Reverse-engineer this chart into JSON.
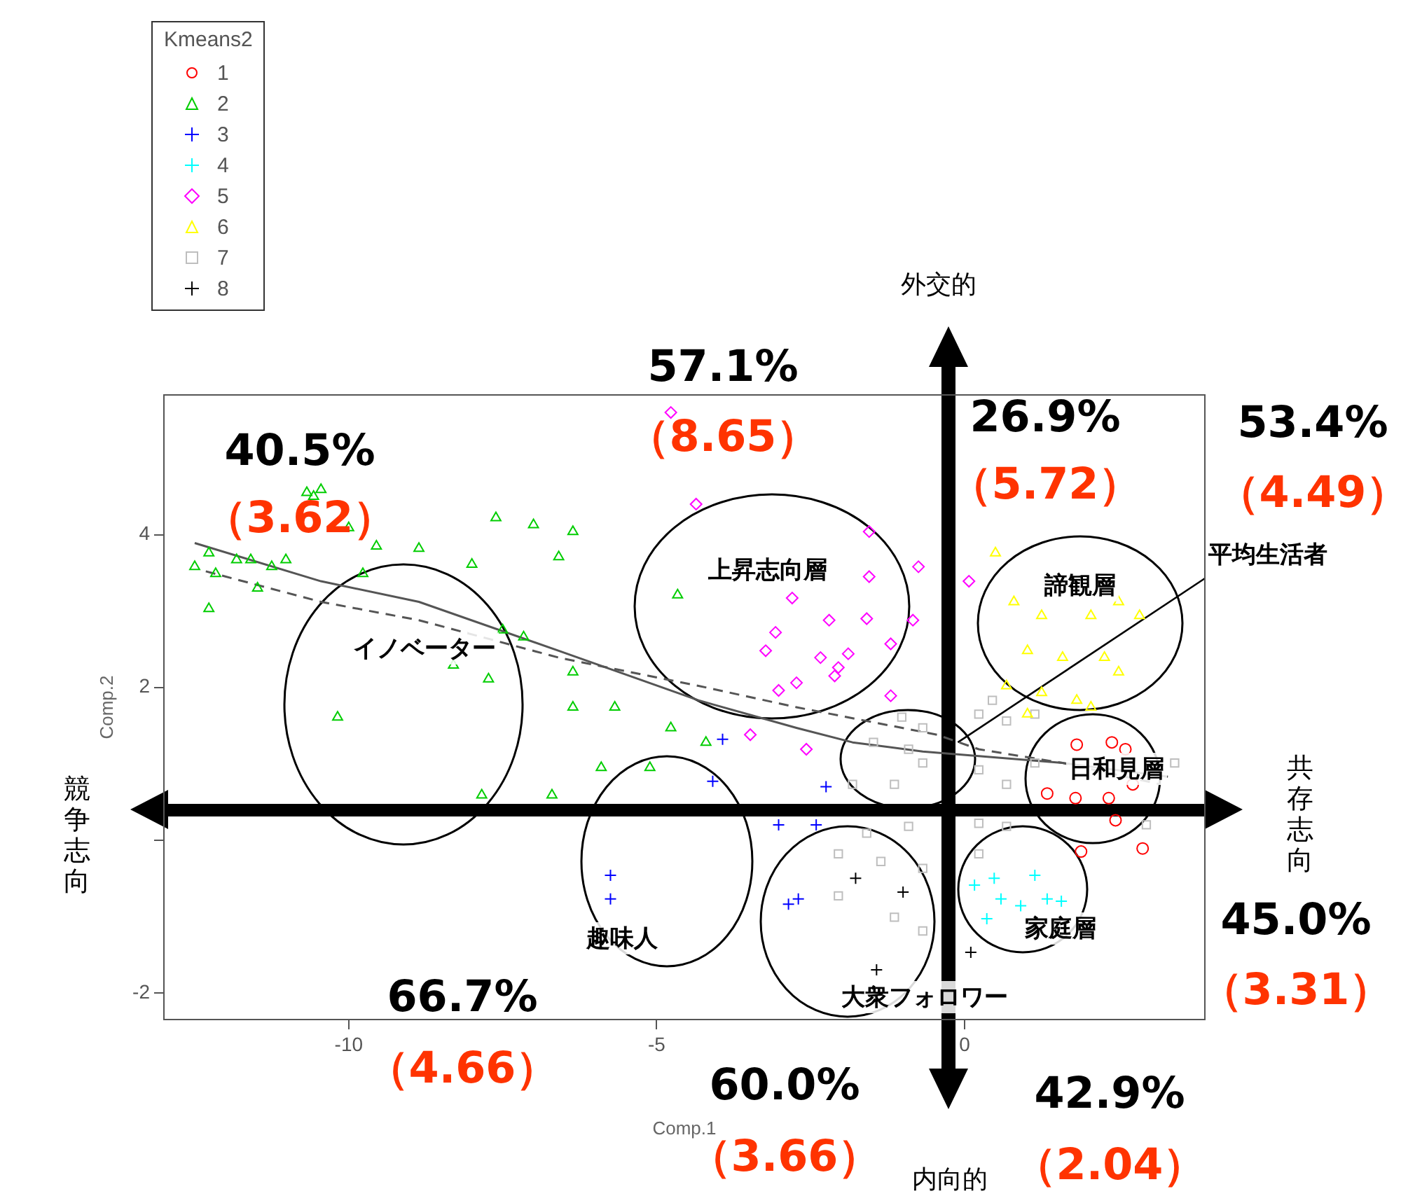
{
  "chart_data": {
    "type": "scatter",
    "xlabel": "Comp.1",
    "ylabel": "Comp.2",
    "legend_title": "Kmeans2",
    "legend": "top left",
    "grid": false,
    "xlim": [
      -13,
      3.9
    ],
    "ylim": [
      -2.35,
      5.83
    ],
    "xticks": [
      -10,
      -5,
      0
    ],
    "yticks": [
      -2,
      {
        "value": 0,
        "label": null
      },
      2,
      4
    ],
    "series": [
      {
        "name": "1",
        "color": "#ff0000",
        "marker": "circle",
        "x": [
          2.39,
          2.61,
          1.82,
          1.34,
          1.8,
          2.34,
          2.73,
          2.45,
          1.89,
          2.89
        ],
        "values": [
          1.28,
          1.19,
          1.25,
          0.61,
          0.55,
          0.55,
          0.73,
          0.26,
          -0.15,
          -0.11
        ]
      },
      {
        "name": "2",
        "color": "#00cd00",
        "marker": "triangle",
        "x": [
          -12.5,
          -12.27,
          -12.16,
          -12.27,
          -11.82,
          -11.59,
          -11.25,
          -11.02,
          -11.48,
          -10.57,
          -10.45,
          -10.68,
          -9.55,
          -8.86,
          -8.0,
          -7.61,
          -7.0,
          -6.59,
          -6.36,
          -7.5,
          -7.16,
          -7.73,
          -8.3,
          -6.36,
          -6.36,
          -5.68,
          -4.77,
          -5.11,
          -4.2,
          -4.66,
          -10.18,
          -7.84,
          -6.7,
          -10.0,
          -9.77,
          -5.9
        ],
        "values": [
          3.58,
          3.76,
          3.49,
          3.03,
          3.67,
          3.67,
          3.58,
          3.67,
          3.3,
          4.5,
          4.59,
          4.55,
          3.85,
          3.82,
          3.61,
          4.22,
          4.13,
          3.71,
          4.04,
          2.75,
          2.66,
          2.11,
          2.29,
          1.74,
          2.2,
          1.74,
          1.47,
          0.95,
          1.28,
          3.21,
          1.61,
          0.59,
          0.59,
          4.09,
          3.49,
          0.95
        ]
      },
      {
        "name": "3",
        "color": "#0000ff",
        "marker": "cross",
        "x": [
          -3.93,
          -4.09,
          -5.75,
          -5.75,
          -3.02,
          -2.86,
          -2.7,
          -2.41,
          -2.25
        ],
        "values": [
          1.32,
          0.77,
          -0.46,
          -0.77,
          0.2,
          -0.84,
          -0.77,
          0.2,
          0.7
        ]
      },
      {
        "name": "4",
        "color": "#00ffff",
        "marker": "cross",
        "x": [
          0.16,
          0.48,
          0.59,
          0.91,
          1.34,
          1.57,
          0.36,
          1.14
        ],
        "values": [
          -0.59,
          -0.5,
          -0.77,
          -0.86,
          -0.77,
          -0.8,
          -1.03,
          -0.46
        ]
      },
      {
        "name": "5",
        "color": "#ff00ff",
        "marker": "diamond",
        "x": [
          -4.77,
          -4.36,
          -1.55,
          -0.75,
          -1.55,
          -2.8,
          -2.2,
          -1.59,
          -3.07,
          -3.23,
          -2.34,
          -1.89,
          -1.2,
          -2.05,
          -3.02,
          -2.73,
          -2.11,
          -1.2,
          -3.48,
          -2.57,
          -0.84,
          0.07
        ],
        "values": [
          5.6,
          4.4,
          4.04,
          3.58,
          3.45,
          3.17,
          2.88,
          2.9,
          2.72,
          2.48,
          2.39,
          2.44,
          2.57,
          2.26,
          1.96,
          2.06,
          2.15,
          1.89,
          1.38,
          1.19,
          2.88,
          3.39
        ]
      },
      {
        "name": "6",
        "color": "#ffff00",
        "marker": "triangle",
        "x": [
          0.5,
          0.8,
          1.25,
          2.05,
          2.5,
          2.84,
          1.02,
          1.59,
          2.27,
          0.68,
          1.25,
          1.82,
          2.5,
          1.02,
          2.05
        ],
        "values": [
          3.76,
          3.12,
          2.94,
          2.94,
          3.12,
          2.94,
          2.48,
          2.39,
          2.39,
          2.02,
          1.93,
          1.83,
          2.2,
          1.65,
          1.74
        ]
      },
      {
        "name": "7",
        "color": "#bebebe",
        "marker": "square",
        "x": [
          -1.02,
          -0.68,
          -1.48,
          -0.91,
          0.23,
          0.45,
          0.68,
          1.14,
          -0.68,
          0.23,
          -1.14,
          -1.82,
          0.68,
          1.14,
          0.23,
          0.68,
          -0.91,
          -1.59,
          -2.05,
          -1.36,
          -0.68,
          0.23,
          -2.05,
          -1.14,
          -0.68,
          3.41,
          2.95
        ],
        "values": [
          1.61,
          1.47,
          1.28,
          1.19,
          1.65,
          1.83,
          1.56,
          1.65,
          1.01,
          0.92,
          0.73,
          0.73,
          0.73,
          1.01,
          0.22,
          0.18,
          0.18,
          0.09,
          -0.18,
          -0.28,
          -0.37,
          -0.18,
          -0.73,
          -1.01,
          -1.19,
          1.01,
          0.2
        ]
      },
      {
        "name": "8",
        "color": "#000000",
        "marker": "cross",
        "x": [
          -1.77,
          -1.0,
          0.1,
          -1.43
        ],
        "values": [
          -0.5,
          -0.68,
          -1.47,
          -1.7
        ]
      },
      {
        "type": "line",
        "color": "#555555",
        "marker": "none",
        "line_style": "solid",
        "x": [
          -12.5,
          -10.45,
          -8.86,
          -6.59,
          -4.32,
          -2.73,
          -1.82,
          -0.68,
          0.23,
          1.59,
          3.3
        ],
        "values": [
          3.89,
          3.39,
          3.12,
          2.48,
          1.83,
          1.47,
          1.28,
          1.16,
          1.1,
          1.01,
          0.83
        ]
      },
      {
        "type": "line",
        "color": "#555555",
        "marker": "none",
        "line_style": "dashed",
        "x": [
          -12.32,
          -10.45,
          -8.86,
          -6.59,
          -4.32,
          -2.73,
          -1.59,
          -0.45,
          0.23,
          1.59,
          3.18
        ],
        "values": [
          3.52,
          3.12,
          2.88,
          2.39,
          2.02,
          1.74,
          1.56,
          1.38,
          1.19,
          1.01,
          0.73
        ]
      }
    ],
    "annotations": [
      "外交的",
      "内向的",
      "競争志向",
      "共存志向",
      {
        "text": "平均生活者",
        "x": -0.11,
        "y": 1.28
      },
      "イノベーター",
      "上昇志向層",
      "諦観層",
      "日和見層",
      "趣味人",
      "大衆フォロワー",
      "家庭層",
      "40.5%",
      "（3.62）",
      "57.1%",
      "（8.65）",
      "26.9%",
      "（5.72）",
      "53.4%",
      "（4.49）",
      "45.0%",
      "（3.31）",
      "66.7%",
      "（4.66）",
      "60.0%",
      "（3.66）",
      "42.9%",
      "（2.04）"
    ]
  }
}
